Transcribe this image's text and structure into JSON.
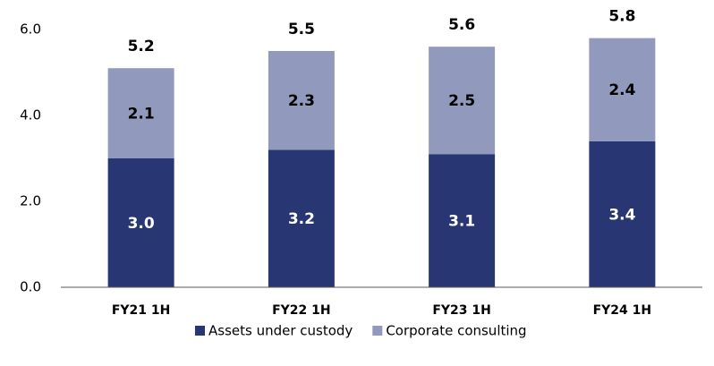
{
  "chart_data": {
    "type": "stacked_bar",
    "categories": [
      "FY21 1H",
      "FY22 1H",
      "FY23 1H",
      "FY24 1H"
    ],
    "series": [
      {
        "name": "Assets under custody",
        "color": "#283673",
        "values": [
          3.0,
          3.2,
          3.1,
          3.4
        ],
        "value_labels": [
          "3.0",
          "3.2",
          "3.1",
          "3.4"
        ]
      },
      {
        "name": "Corporate consulting",
        "color": "#9199bc",
        "values": [
          2.1,
          2.3,
          2.5,
          2.4
        ]
      }
    ],
    "totals": [
      5.2,
      5.5,
      5.6,
      5.8
    ],
    "ylim": [
      0,
      6
    ],
    "yticks": [
      {
        "value": 0,
        "label": "0.0"
      },
      {
        "value": 2,
        "label": "2.0"
      },
      {
        "value": 4,
        "label": "4.0"
      },
      {
        "value": 6,
        "label": "6.0"
      }
    ],
    "grid": false,
    "legend": "bottom"
  }
}
